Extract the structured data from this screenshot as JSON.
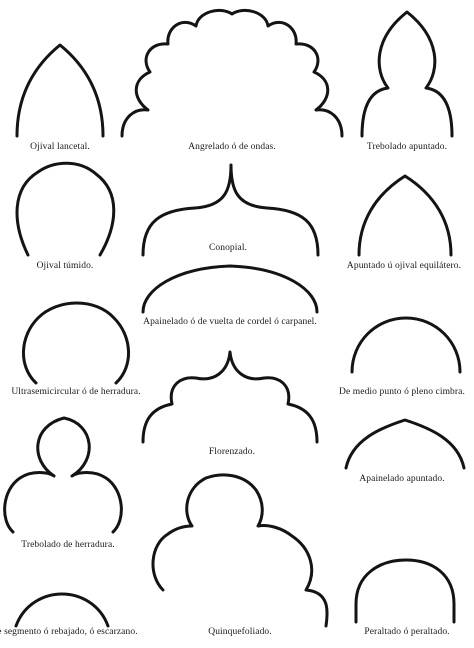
{
  "arches": [
    {
      "id": "ojival-lancetal",
      "label": "Ojival lancetal."
    },
    {
      "id": "angrelado",
      "label": "Angrelado ó de ondas."
    },
    {
      "id": "trebolado-apuntado",
      "label": "Trebolado apuntado."
    },
    {
      "id": "ojival-tumido",
      "label": "Ojival túmido."
    },
    {
      "id": "conopial",
      "label": "Conopial."
    },
    {
      "id": "apuntado-equilatero",
      "label": "Apuntado ú ojival equilátero."
    },
    {
      "id": "apainelado-carpanel",
      "label": "Apainelado ó de vuelta de cordel ó carpanel."
    },
    {
      "id": "ultrasemicircular",
      "label": "Ultrasemicircular ó de herradura."
    },
    {
      "id": "florenzado",
      "label": "Florenzado."
    },
    {
      "id": "medio-punto",
      "label": "De medio punto ó pleno cimbra."
    },
    {
      "id": "apainelado-apuntado",
      "label": "Apainelado apuntado."
    },
    {
      "id": "trebolado-herradura",
      "label": "Trebolado de herradura."
    },
    {
      "id": "segmento",
      "label": "De segmento ó rebajado, ó escarzano."
    },
    {
      "id": "quinquefoliado",
      "label": "Quinquefoliado."
    },
    {
      "id": "peraltado",
      "label": "Peraltado ó peraltado."
    }
  ]
}
